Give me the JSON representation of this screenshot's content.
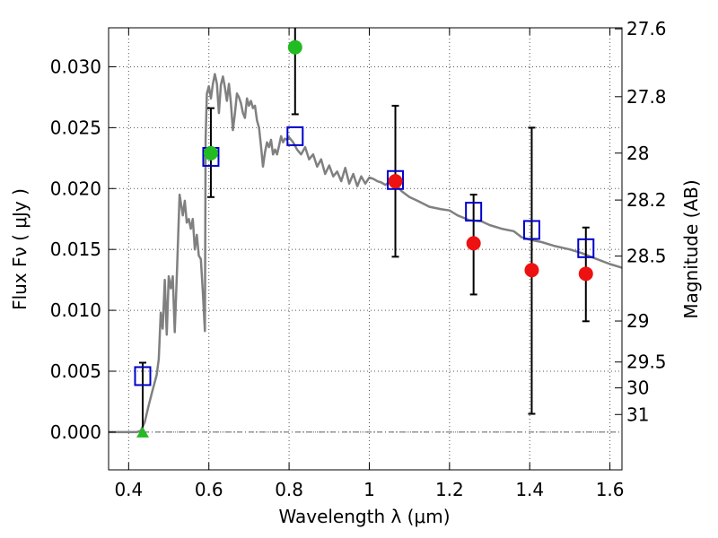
{
  "chart_data": {
    "type": "scatter",
    "xlabel": "Wavelength  λ (μm)",
    "ylabel": "Flux  Fν  ( μJy )",
    "y2label": "Magnitude (AB)",
    "xlim": [
      0.35,
      1.63
    ],
    "ylim": [
      -0.0031,
      0.0332
    ],
    "grid": true,
    "x_ticks": [
      0.4,
      0.6,
      0.8,
      1.0,
      1.2,
      1.4,
      1.6
    ],
    "x_tick_labels": [
      "0.4",
      "0.6",
      "0.8",
      "1",
      "1.2",
      "1.4",
      "1.6"
    ],
    "y_ticks": [
      0.0,
      0.005,
      0.01,
      0.015,
      0.02,
      0.025,
      0.03
    ],
    "y_tick_labels": [
      "0.000",
      "0.005",
      "0.010",
      "0.015",
      "0.020",
      "0.025",
      "0.030"
    ],
    "right_ticks": [
      {
        "mag": 27.6,
        "label": "27.6"
      },
      {
        "mag": 27.8,
        "label": "27.8"
      },
      {
        "mag": 28.0,
        "label": "28"
      },
      {
        "mag": 28.2,
        "label": "28.2"
      },
      {
        "mag": 28.5,
        "label": "28.5"
      },
      {
        "mag": 29.0,
        "label": "29"
      },
      {
        "mag": 29.5,
        "label": "29.5"
      },
      {
        "mag": 30.0,
        "label": "30"
      },
      {
        "mag": 31.0,
        "label": "31"
      }
    ],
    "zero_line_y": 0.0,
    "model_spectrum": {
      "color": "#808080",
      "points": [
        [
          0.35,
          0.0
        ],
        [
          0.42,
          0.0
        ],
        [
          0.43,
          0.0001
        ],
        [
          0.44,
          0.0008
        ],
        [
          0.45,
          0.0022
        ],
        [
          0.46,
          0.0035
        ],
        [
          0.47,
          0.0047
        ],
        [
          0.475,
          0.006
        ],
        [
          0.48,
          0.0098
        ],
        [
          0.485,
          0.0085
        ],
        [
          0.49,
          0.0125
        ],
        [
          0.495,
          0.008
        ],
        [
          0.5,
          0.0128
        ],
        [
          0.505,
          0.0118
        ],
        [
          0.51,
          0.0128
        ],
        [
          0.515,
          0.0082
        ],
        [
          0.52,
          0.0128
        ],
        [
          0.527,
          0.0195
        ],
        [
          0.535,
          0.0178
        ],
        [
          0.54,
          0.019
        ],
        [
          0.545,
          0.0172
        ],
        [
          0.55,
          0.0175
        ],
        [
          0.555,
          0.0167
        ],
        [
          0.56,
          0.0175
        ],
        [
          0.565,
          0.015
        ],
        [
          0.57,
          0.0162
        ],
        [
          0.575,
          0.0145
        ],
        [
          0.58,
          0.0142
        ],
        [
          0.585,
          0.0115
        ],
        [
          0.59,
          0.0083
        ],
        [
          0.592,
          0.024
        ],
        [
          0.595,
          0.0278
        ],
        [
          0.6,
          0.0284
        ],
        [
          0.605,
          0.0274
        ],
        [
          0.61,
          0.0286
        ],
        [
          0.615,
          0.0294
        ],
        [
          0.62,
          0.0286
        ],
        [
          0.625,
          0.0262
        ],
        [
          0.63,
          0.0285
        ],
        [
          0.635,
          0.0292
        ],
        [
          0.64,
          0.0283
        ],
        [
          0.645,
          0.0272
        ],
        [
          0.65,
          0.0286
        ],
        [
          0.655,
          0.027
        ],
        [
          0.66,
          0.0248
        ],
        [
          0.665,
          0.0262
        ],
        [
          0.67,
          0.0278
        ],
        [
          0.675,
          0.0275
        ],
        [
          0.68,
          0.027
        ],
        [
          0.685,
          0.0262
        ],
        [
          0.69,
          0.0258
        ],
        [
          0.695,
          0.0274
        ],
        [
          0.7,
          0.0268
        ],
        [
          0.705,
          0.0272
        ],
        [
          0.71,
          0.0266
        ],
        [
          0.715,
          0.0268
        ],
        [
          0.72,
          0.0256
        ],
        [
          0.725,
          0.025
        ],
        [
          0.73,
          0.0235
        ],
        [
          0.735,
          0.0218
        ],
        [
          0.74,
          0.023
        ],
        [
          0.745,
          0.0238
        ],
        [
          0.75,
          0.0234
        ],
        [
          0.755,
          0.024
        ],
        [
          0.76,
          0.0228
        ],
        [
          0.765,
          0.0232
        ],
        [
          0.77,
          0.0228
        ],
        [
          0.775,
          0.0235
        ],
        [
          0.78,
          0.0243
        ],
        [
          0.785,
          0.0238
        ],
        [
          0.79,
          0.0241
        ],
        [
          0.795,
          0.024
        ],
        [
          0.8,
          0.0242
        ],
        [
          0.81,
          0.0238
        ],
        [
          0.82,
          0.0232
        ],
        [
          0.83,
          0.0228
        ],
        [
          0.84,
          0.0234
        ],
        [
          0.85,
          0.0224
        ],
        [
          0.86,
          0.0228
        ],
        [
          0.87,
          0.0218
        ],
        [
          0.88,
          0.0224
        ],
        [
          0.89,
          0.0212
        ],
        [
          0.9,
          0.0219
        ],
        [
          0.91,
          0.021
        ],
        [
          0.92,
          0.0214
        ],
        [
          0.93,
          0.0206
        ],
        [
          0.94,
          0.0217
        ],
        [
          0.95,
          0.0204
        ],
        [
          0.96,
          0.0212
        ],
        [
          0.97,
          0.0202
        ],
        [
          0.98,
          0.021
        ],
        [
          0.99,
          0.0204
        ],
        [
          1.0,
          0.0209
        ],
        [
          1.01,
          0.0208
        ],
        [
          1.02,
          0.0206
        ],
        [
          1.03,
          0.0205
        ],
        [
          1.04,
          0.0203
        ],
        [
          1.05,
          0.0205
        ],
        [
          1.06,
          0.0204
        ],
        [
          1.07,
          0.0202
        ],
        [
          1.08,
          0.0198
        ],
        [
          1.1,
          0.0193
        ],
        [
          1.12,
          0.019
        ],
        [
          1.15,
          0.0185
        ],
        [
          1.18,
          0.0183
        ],
        [
          1.2,
          0.0182
        ],
        [
          1.22,
          0.0178
        ],
        [
          1.25,
          0.0174
        ],
        [
          1.28,
          0.0173
        ],
        [
          1.3,
          0.017
        ],
        [
          1.33,
          0.0167
        ],
        [
          1.36,
          0.0165
        ],
        [
          1.38,
          0.016
        ],
        [
          1.4,
          0.0158
        ],
        [
          1.43,
          0.0156
        ],
        [
          1.46,
          0.0153
        ],
        [
          1.5,
          0.015
        ],
        [
          1.53,
          0.0147
        ],
        [
          1.56,
          0.0143
        ],
        [
          1.6,
          0.0138
        ],
        [
          1.63,
          0.0135
        ]
      ]
    },
    "series": [
      {
        "marker": "square-open",
        "color": "#0000cc",
        "points": [
          {
            "x": 0.435,
            "y": 0.0046
          },
          {
            "x": 0.605,
            "y": 0.0226
          },
          {
            "x": 0.815,
            "y": 0.0243
          },
          {
            "x": 1.065,
            "y": 0.0207
          },
          {
            "x": 1.26,
            "y": 0.0181
          },
          {
            "x": 1.405,
            "y": 0.0166
          },
          {
            "x": 1.54,
            "y": 0.0151
          }
        ]
      },
      {
        "marker": "circle",
        "color": "#ee1111",
        "points": [
          {
            "x": 1.065,
            "y": 0.0206,
            "ylo": 0.0144,
            "yhi": 0.0268
          },
          {
            "x": 1.26,
            "y": 0.0155,
            "ylo": 0.0113,
            "yhi": 0.0195
          },
          {
            "x": 1.405,
            "y": 0.0133,
            "ylo": 0.0015,
            "yhi": 0.025
          },
          {
            "x": 1.54,
            "y": 0.013,
            "ylo": 0.0091,
            "yhi": 0.0168
          }
        ]
      },
      {
        "marker": "circle",
        "color": "#22bb22",
        "points": [
          {
            "x": 0.605,
            "y": 0.0229,
            "ylo": 0.0193,
            "yhi": 0.0266
          },
          {
            "x": 0.815,
            "y": 0.0316,
            "ylo": 0.0261,
            "yhi": 0.0335
          }
        ]
      },
      {
        "marker": "triangle",
        "color": "#22bb22",
        "points": [
          {
            "x": 0.435,
            "y": 0.0,
            "ylo": -0.0001,
            "yhi": 0.0057
          }
        ]
      }
    ]
  }
}
